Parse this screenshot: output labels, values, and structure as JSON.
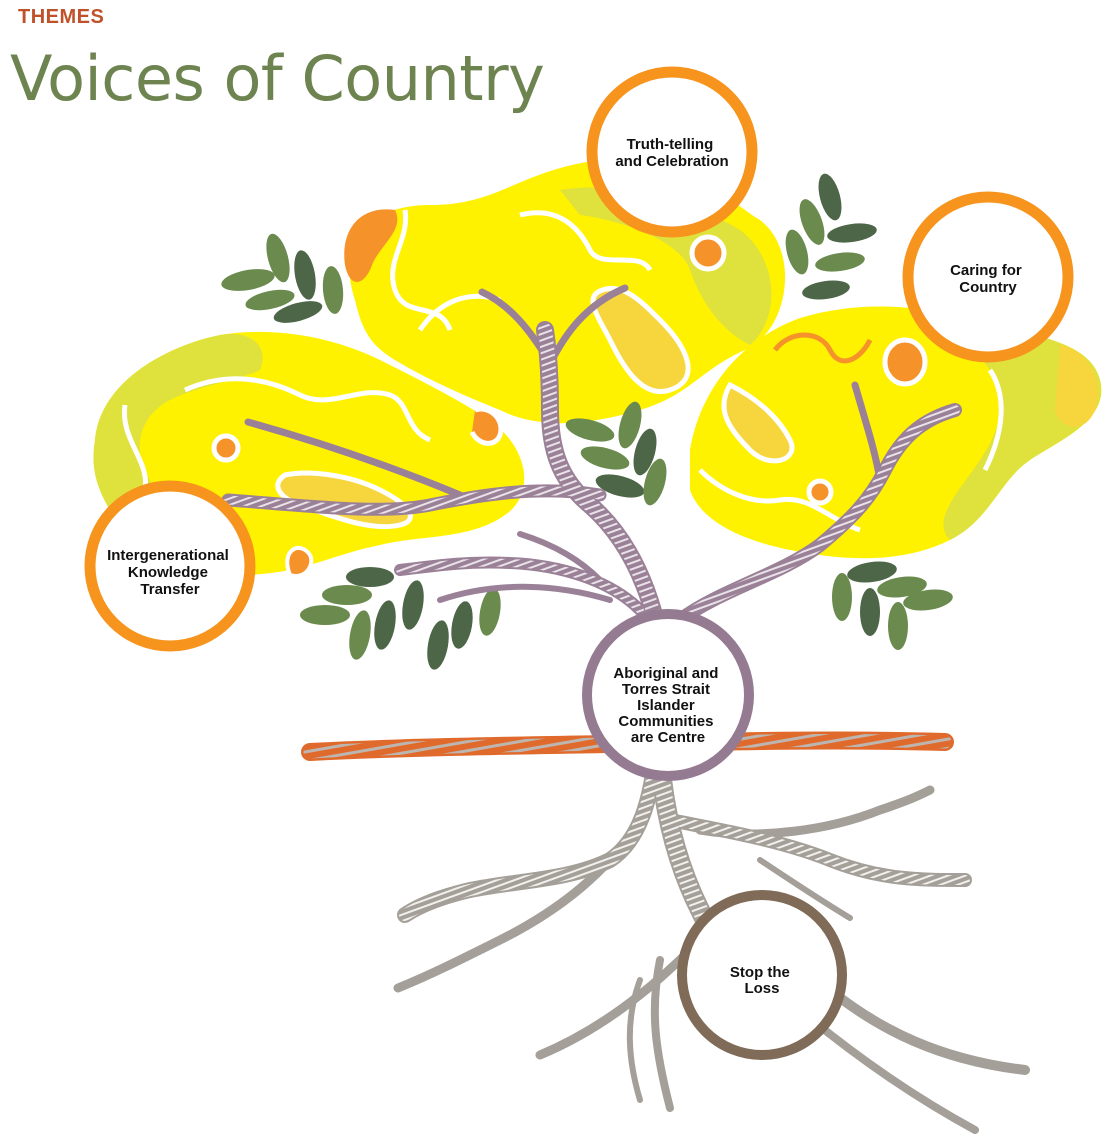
{
  "header": {
    "eyebrow": "THEMES",
    "title": "Voices of Country"
  },
  "colors": {
    "eyebrow": "#c0522b",
    "title": "#6e8450",
    "canopy_yellow": "#fff200",
    "canopy_lime": "#dfe13c",
    "canopy_accent_orange": "#f5922a",
    "leaf_green": "#6b8a4e",
    "leaf_dark": "#4d6647",
    "trunk_purple": "#9a8197",
    "root_grey": "#a49f98",
    "ground_orange": "#e06a2c",
    "ring_orange": "#f7941d",
    "ring_purple": "#957b91",
    "ring_brown": "#7f6b57"
  },
  "themes": {
    "truth": {
      "lines": [
        "Truth-telling",
        "and Celebration"
      ],
      "ring": "orange"
    },
    "caring": {
      "lines": [
        "Caring for",
        "Country"
      ],
      "ring": "orange"
    },
    "knowledge": {
      "lines": [
        "Intergenerational",
        "Knowledge",
        "Transfer"
      ],
      "ring": "orange"
    },
    "centre": {
      "lines": [
        "Aboriginal and",
        "Torres Strait",
        "Islander",
        "Communities",
        "are Centre"
      ],
      "ring": "purple"
    },
    "loss": {
      "lines": [
        "Stop the",
        "Loss"
      ],
      "ring": "brown"
    }
  }
}
